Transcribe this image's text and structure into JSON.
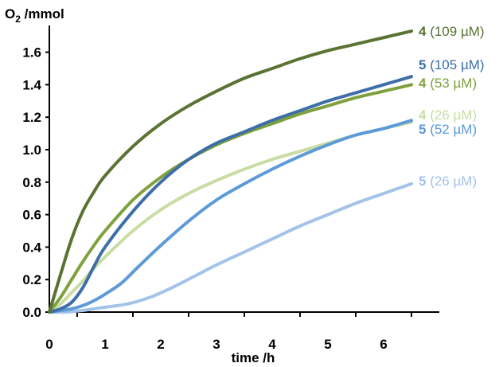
{
  "chart_data": {
    "type": "line",
    "ylabel_main": "O",
    "ylabel_sub": "2",
    "ylabel_rest": " /mmol",
    "xlabel": "time /h",
    "xlim": [
      0,
      7.0
    ],
    "ylim": [
      0,
      1.75
    ],
    "x_ticks": [
      "0",
      "1",
      "2",
      "3",
      "4",
      "5",
      "6"
    ],
    "y_ticks": [
      "0.0",
      "0.2",
      "0.4",
      "0.6",
      "0.8",
      "1.0",
      "1.2",
      "1.4",
      "1.6"
    ],
    "grid": false,
    "legend": "inline labels at right end of each curve",
    "series": [
      {
        "number": "4",
        "conc": " (109 µM)",
        "color": "#5a7332",
        "x": [
          0,
          0.2,
          0.4,
          0.6,
          0.8,
          1.0,
          1.5,
          2.0,
          2.5,
          3.0,
          3.5,
          4.0,
          4.5,
          5.0,
          5.5,
          6.0,
          6.5
        ],
        "y": [
          0,
          0.23,
          0.45,
          0.62,
          0.74,
          0.84,
          1.02,
          1.16,
          1.27,
          1.36,
          1.44,
          1.5,
          1.56,
          1.61,
          1.65,
          1.69,
          1.73
        ]
      },
      {
        "number": "5",
        "conc": " (105 µM)",
        "color": "#3d6ea8",
        "x": [
          0,
          0.2,
          0.4,
          0.6,
          0.8,
          1.0,
          1.5,
          2.0,
          2.5,
          3.0,
          3.5,
          4.0,
          4.5,
          5.0,
          5.5,
          6.0,
          6.5
        ],
        "y": [
          0,
          0.02,
          0.06,
          0.15,
          0.28,
          0.4,
          0.62,
          0.8,
          0.94,
          1.04,
          1.11,
          1.18,
          1.24,
          1.3,
          1.35,
          1.4,
          1.45
        ]
      },
      {
        "number": "4",
        "conc": " (53 µM)",
        "color": "#7fa13d",
        "x": [
          0,
          0.2,
          0.4,
          0.6,
          0.8,
          1.0,
          1.5,
          2.0,
          2.5,
          3.0,
          3.5,
          4.0,
          4.5,
          5.0,
          5.5,
          6.0,
          6.5
        ],
        "y": [
          0,
          0.09,
          0.2,
          0.31,
          0.41,
          0.5,
          0.69,
          0.83,
          0.94,
          1.03,
          1.1,
          1.16,
          1.22,
          1.27,
          1.32,
          1.36,
          1.4
        ]
      },
      {
        "number": "4",
        "conc": " (26 µM)",
        "color": "#c9dca4",
        "x": [
          0,
          0.2,
          0.4,
          0.6,
          0.8,
          1.0,
          1.5,
          2.0,
          2.5,
          3.0,
          3.5,
          4.0,
          4.5,
          5.0,
          5.5,
          6.0,
          6.5
        ],
        "y": [
          0,
          0.05,
          0.12,
          0.19,
          0.27,
          0.34,
          0.5,
          0.63,
          0.73,
          0.81,
          0.88,
          0.94,
          0.99,
          1.04,
          1.09,
          1.13,
          1.17
        ]
      },
      {
        "number": "5",
        "conc": " (52 µM)",
        "color": "#5c9ad8",
        "x": [
          0,
          0.2,
          0.4,
          0.6,
          0.8,
          1.0,
          1.3,
          1.6,
          2.0,
          2.5,
          3.0,
          3.5,
          4.0,
          4.5,
          5.0,
          5.5,
          6.0,
          6.5
        ],
        "y": [
          0,
          0.01,
          0.02,
          0.04,
          0.07,
          0.11,
          0.18,
          0.28,
          0.41,
          0.56,
          0.69,
          0.79,
          0.88,
          0.96,
          1.03,
          1.09,
          1.13,
          1.18
        ]
      },
      {
        "number": "5",
        "conc": " (26 µM)",
        "color": "#a4c3e8",
        "x": [
          0,
          0.3,
          0.6,
          0.8,
          1.0,
          1.4,
          1.8,
          2.2,
          2.6,
          3.0,
          3.5,
          4.0,
          4.5,
          5.0,
          5.5,
          6.0,
          6.5
        ],
        "y": [
          0,
          0.0,
          0.01,
          0.02,
          0.03,
          0.05,
          0.09,
          0.15,
          0.22,
          0.29,
          0.37,
          0.45,
          0.53,
          0.6,
          0.67,
          0.73,
          0.79
        ]
      }
    ]
  },
  "labels": [
    {
      "number": "4",
      "conc": " (109 µM)"
    },
    {
      "number": "5",
      "conc": " (105 µM)"
    },
    {
      "number": "4",
      "conc": " (53 µM)"
    },
    {
      "number": "4",
      "conc": " (26 µM)"
    },
    {
      "number": "5",
      "conc": " (52 µM)"
    },
    {
      "number": "5",
      "conc": " (26 µM)"
    }
  ]
}
